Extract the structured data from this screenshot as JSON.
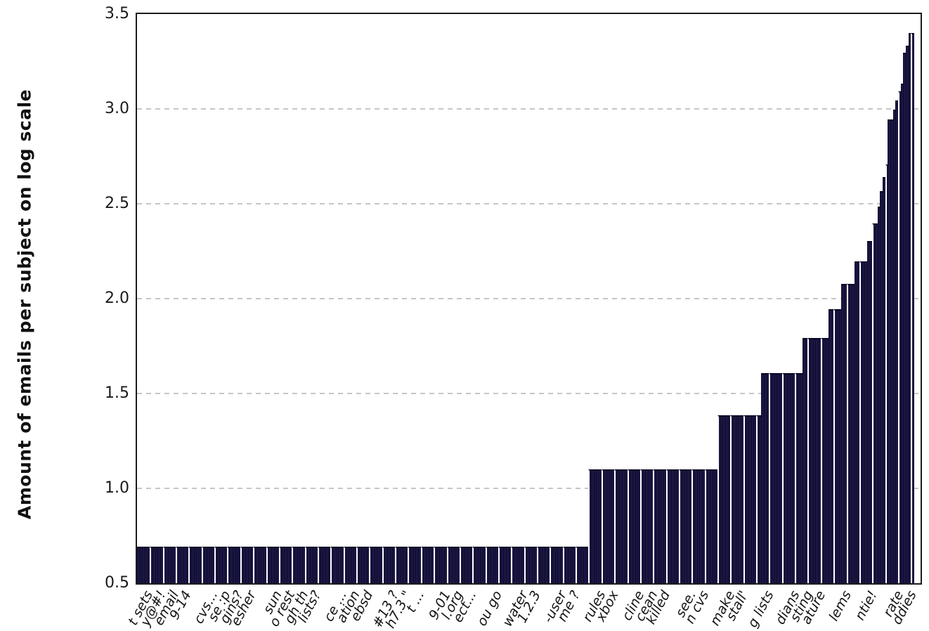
{
  "chart_data": {
    "type": "bar",
    "title": "",
    "xlabel": "",
    "ylabel": "Amount of emails per subject on log scale",
    "ylim": [
      0.5,
      3.5
    ],
    "ytick_labels": [
      "3.5",
      "3.0",
      "2.5",
      "2.0",
      "1.5",
      "1.0",
      "0.5"
    ],
    "ytick_values": [
      3.5,
      3.0,
      2.5,
      2.0,
      1.5,
      1.0,
      0.5
    ],
    "gridline_values": [
      3.0,
      2.5,
      2.0,
      1.5,
      1.0
    ],
    "grid_style": "dashed horizontal gray",
    "legend": "none",
    "bars_are_sorted_ascending": true,
    "x_labels_cut_off_at_bottom_edge": true,
    "bar_value_runs": [
      [
        175,
        0.693
      ],
      [
        50,
        1.099
      ],
      [
        17,
        1.386
      ],
      [
        16,
        1.609
      ],
      [
        10,
        1.792
      ],
      [
        5,
        1.946
      ],
      [
        5,
        2.079
      ],
      [
        5,
        2.197
      ],
      [
        2,
        2.303
      ],
      [
        2,
        2.398
      ],
      [
        1,
        2.485
      ],
      [
        1,
        2.565
      ],
      [
        1,
        2.639
      ],
      [
        1,
        2.708
      ],
      [
        2,
        2.944
      ],
      [
        1,
        2.996
      ],
      [
        1,
        3.045
      ],
      [
        1,
        3.091
      ],
      [
        1,
        3.135
      ],
      [
        1,
        3.296
      ],
      [
        1,
        3.332
      ],
      [
        2,
        3.401
      ]
    ],
    "x_tick_label_visible_fragments": [
      "t sets",
      "y@#!",
      "email",
      "9-14",
      "",
      "cvs...",
      "se :p",
      "gins?",
      "esher",
      "",
      "sun",
      "o rest",
      "gh th",
      "lists?",
      "",
      "ce ...",
      "ation",
      "ebsd",
      "",
      "#13 ?",
      "h7.3 \"",
      "t ...",
      "",
      "9-01",
      "l.org",
      "ect...",
      "",
      "ou go",
      "",
      "water",
      "1.2.3",
      "",
      "-user",
      "me ?",
      "",
      "rules",
      "xbox",
      "",
      "cline",
      "cean",
      "killed",
      "",
      "see.",
      "n cvs",
      "",
      "make",
      "stall'",
      "",
      "g lists",
      "",
      "dians",
      "sting",
      "ature",
      "",
      "lems",
      "",
      "ntie!",
      "",
      "rate",
      "ddies"
    ]
  },
  "colors": {
    "bar_fill": "#1a1642",
    "bar_edge": "#05041e",
    "bar_separator": "#ffffff",
    "gridline": "#c6c6c6",
    "frame": "#1c1c1c",
    "text": "#111111"
  }
}
